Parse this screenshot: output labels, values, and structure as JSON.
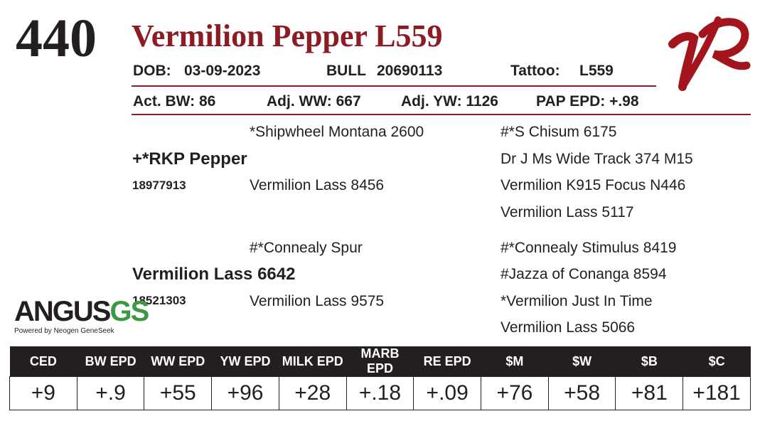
{
  "header": {
    "lot_number": "440",
    "animal_name": "Vermilion Pepper L559",
    "logo_letters": "VR",
    "brand_color": "#8b1c23"
  },
  "info_row1": {
    "dob_label": "DOB:",
    "dob_value": "03-09-2023",
    "sex_label": "BULL",
    "reg_number": "20690113",
    "tattoo_label": "Tattoo:",
    "tattoo_value": "L559"
  },
  "info_row2": {
    "act_bw": "Act. BW: 86",
    "adj_ww": "Adj. WW: 667",
    "adj_yw": "Adj. YW: 1126",
    "pap_epd": "PAP EPD: +.98"
  },
  "pedigree": {
    "sire": {
      "name": "+*RKP Pepper",
      "reg": "18977913"
    },
    "sire_sire": "*Shipwheel Montana 2600",
    "sire_dam": "Vermilion Lass 8456",
    "sire_sire_sire": "#*S Chisum 6175",
    "sire_sire_dam": "Dr J Ms Wide Track 374 M15",
    "sire_dam_sire": "Vermilion K915 Focus N446",
    "sire_dam_dam": "Vermilion Lass 5117",
    "dam": {
      "name": "Vermilion Lass 6642",
      "reg": "18521303"
    },
    "dam_sire": "#*Connealy Spur",
    "dam_dam": "Vermilion Lass 9575",
    "dam_sire_sire": "#*Connealy Stimulus 8419",
    "dam_sire_dam": "#Jazza of Conanga 8594",
    "dam_dam_sire": "*Vermilion Just In Time",
    "dam_dam_dam": "Vermilion Lass 5066"
  },
  "angus_logo": {
    "word": "ANGUS",
    "suffix": "GS",
    "tagline": "Powered by Neogen GeneSeek"
  },
  "epd_table": {
    "headers": [
      "CED",
      "BW EPD",
      "WW EPD",
      "YW EPD",
      "MILK EPD",
      "MARB EPD",
      "RE EPD",
      "$M",
      "$W",
      "$B",
      "$C"
    ],
    "values": [
      "+9",
      "+.9",
      "+55",
      "+96",
      "+28",
      "+.18",
      "+.09",
      "+76",
      "+58",
      "+81",
      "+181"
    ]
  }
}
